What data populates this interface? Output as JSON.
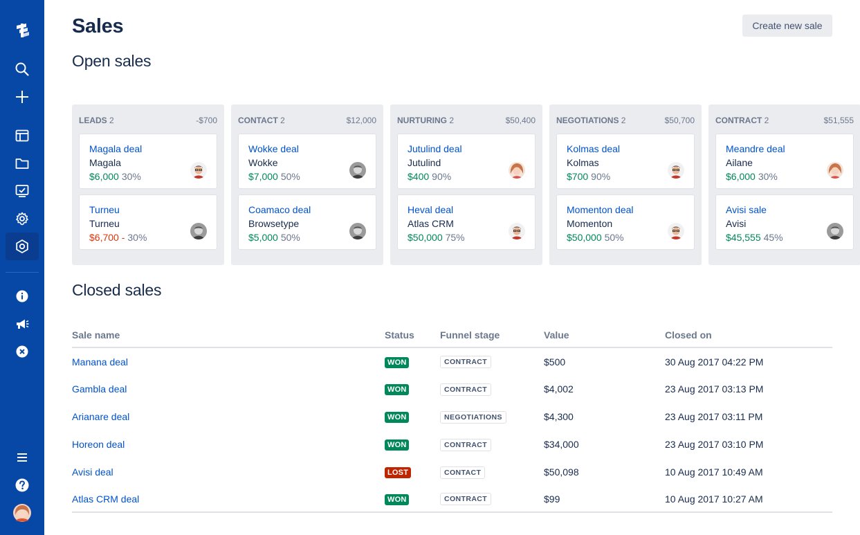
{
  "colors": {
    "sidebar": "#0747a6",
    "link": "#0052cc",
    "positive": "#00875a",
    "negative": "#de350b",
    "won": "#00875a",
    "lost": "#bf2600"
  },
  "sidebar": {
    "top_icons": [
      "logo-icon",
      "search-icon",
      "plus-icon",
      "board-icon",
      "folder-icon",
      "reports-icon",
      "settings-icon",
      "addon-icon"
    ],
    "bottom_icons": [
      "info-icon",
      "megaphone-icon",
      "close-circle-icon",
      "menu-icon",
      "help-icon",
      "user-avatar"
    ]
  },
  "header": {
    "title": "Sales",
    "create_button": "Create new sale"
  },
  "open_sales": {
    "title": "Open sales",
    "columns": [
      {
        "name": "LEADS",
        "count": "2",
        "total": "-$700",
        "cards": [
          {
            "title": "Magala deal",
            "company": "Magala",
            "value": "$6,000",
            "value_color": "green",
            "pct": "30%"
          },
          {
            "title": "Turneu",
            "company": "Turneu",
            "value": "$6,700 -",
            "value_color": "red",
            "pct": "30%"
          }
        ]
      },
      {
        "name": "CONTACT",
        "count": "2",
        "total": "$12,000",
        "cards": [
          {
            "title": "Wokke deal",
            "company": "Wokke",
            "value": "$7,000",
            "value_color": "green",
            "pct": "50%"
          },
          {
            "title": "Coamaco deal",
            "company": "Browsetype",
            "value": "$5,000",
            "value_color": "green",
            "pct": "50%"
          }
        ]
      },
      {
        "name": "NURTURING",
        "count": "2",
        "total": "$50,400",
        "cards": [
          {
            "title": "Jutulind deal",
            "company": "Jutulind",
            "value": "$400",
            "value_color": "green",
            "pct": "90%"
          },
          {
            "title": "Heval deal",
            "company": "Atlas CRM",
            "value": "$50,000",
            "value_color": "green",
            "pct": "75%"
          }
        ]
      },
      {
        "name": "NEGOTIATIONS",
        "count": "2",
        "total": "$50,700",
        "cards": [
          {
            "title": "Kolmas deal",
            "company": "Kolmas",
            "value": "$700",
            "value_color": "green",
            "pct": "90%"
          },
          {
            "title": "Momenton deal",
            "company": "Momenton",
            "value": "$50,000",
            "value_color": "green",
            "pct": "50%"
          }
        ]
      },
      {
        "name": "CONTRACT",
        "count": "2",
        "total": "$51,555",
        "cards": [
          {
            "title": "Meandre deal",
            "company": "Ailane",
            "value": "$6,000",
            "value_color": "green",
            "pct": "30%"
          },
          {
            "title": "Avisi sale",
            "company": "Avisi",
            "value": "$45,555",
            "value_color": "green",
            "pct": "45%"
          }
        ]
      }
    ]
  },
  "closed_sales": {
    "title": "Closed sales",
    "headers": {
      "name": "Sale name",
      "status": "Status",
      "stage": "Funnel stage",
      "value": "Value",
      "closed": "Closed on"
    },
    "rows": [
      {
        "name": "Manana deal",
        "status": "WON",
        "stage": "CONTRACT",
        "value": "$500",
        "closed": "30 Aug 2017 04:22 PM"
      },
      {
        "name": "Gambla deal",
        "status": "WON",
        "stage": "CONTRACT",
        "value": "$4,002",
        "closed": "23 Aug 2017 03:13 PM"
      },
      {
        "name": "Arianare deal",
        "status": "WON",
        "stage": "NEGOTIATIONS",
        "value": "$4,300",
        "closed": "23 Aug 2017 03:11 PM"
      },
      {
        "name": "Horeon deal",
        "status": "WON",
        "stage": "CONTRACT",
        "value": "$34,000",
        "closed": "23 Aug 2017 03:10 PM"
      },
      {
        "name": "Avisi deal",
        "status": "LOST",
        "stage": "CONTACT",
        "value": "$50,098",
        "closed": "10 Aug 2017 10:49 AM"
      },
      {
        "name": "Atlas CRM deal",
        "status": "WON",
        "stage": "CONTRACT",
        "value": "$99",
        "closed": "10 Aug 2017 10:27 AM"
      }
    ]
  }
}
